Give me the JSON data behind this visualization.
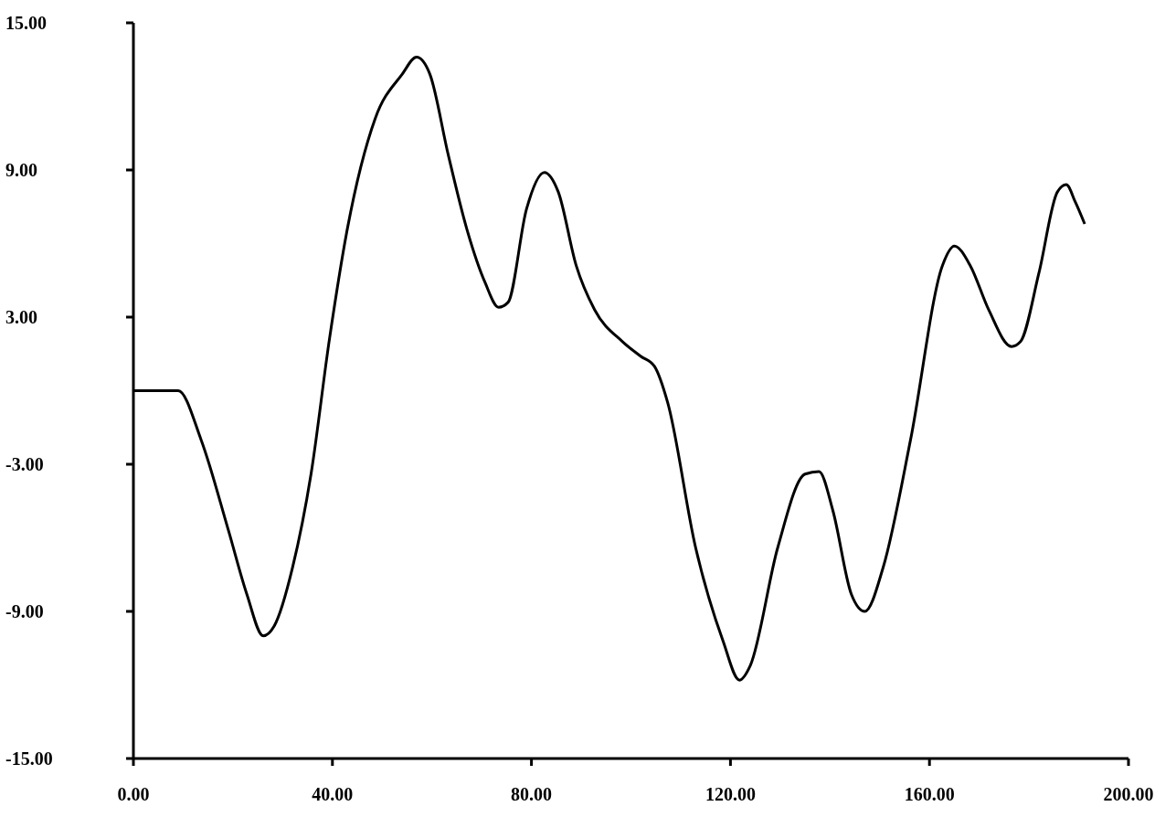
{
  "chart_data": {
    "type": "line",
    "x": [
      0,
      9,
      13.6,
      19.1,
      22.8,
      26.1,
      28.3,
      32,
      35.7,
      39.4,
      43,
      48.6,
      54,
      56.9,
      59.6,
      63.3,
      67,
      70.7,
      73.4,
      75.3,
      79,
      82.6,
      85.4,
      89,
      92.7,
      98.3,
      102,
      104.7,
      107.4,
      113,
      118.5,
      121.8,
      124,
      129.5,
      135,
      137.8,
      140.6,
      144.3,
      147,
      150.7,
      156.2,
      162.6,
      165,
      168.2,
      171.9,
      176.5,
      178.3,
      182,
      185.7,
      187.5,
      189.3,
      191.2
    ],
    "series": [
      {
        "color": "#000000",
        "values": [
          0,
          0,
          -2,
          -5.7,
          -8.3,
          -10,
          -9.6,
          -7.2,
          -3.4,
          2.1,
          6.6,
          11.1,
          12.9,
          13.6,
          12.9,
          9.6,
          6.6,
          4.4,
          3.4,
          3.6,
          7.4,
          8.9,
          8.1,
          5.1,
          3.3,
          2,
          1.4,
          1,
          -0.5,
          -6.4,
          -10.2,
          -11.8,
          -11.2,
          -6.4,
          -3.4,
          -3.3,
          -4.9,
          -8.3,
          -9,
          -7.2,
          -2,
          5.1,
          5.9,
          5.1,
          3.3,
          1.8,
          2,
          4.8,
          8.1,
          8.4,
          7.7,
          6.8
        ]
      }
    ],
    "xlim": [
      0,
      200
    ],
    "ylim": [
      -15,
      15
    ],
    "xticks": [
      {
        "value": 0,
        "label": "0.00"
      },
      {
        "value": 40,
        "label": "40.00"
      },
      {
        "value": 80,
        "label": "80.00"
      },
      {
        "value": 120,
        "label": "120.00"
      },
      {
        "value": 160,
        "label": "160.00"
      },
      {
        "value": 200,
        "label": "200.00"
      }
    ],
    "yticks": [
      {
        "value": -15,
        "label": "-15.00"
      },
      {
        "value": -9,
        "label": "-9.00"
      },
      {
        "value": -3,
        "label": "-3.00"
      },
      {
        "value": 3,
        "label": "3.00"
      },
      {
        "value": 9,
        "label": "9.00"
      },
      {
        "value": 15,
        "label": "15.00"
      }
    ],
    "marker": "none",
    "line_style": "solid"
  }
}
